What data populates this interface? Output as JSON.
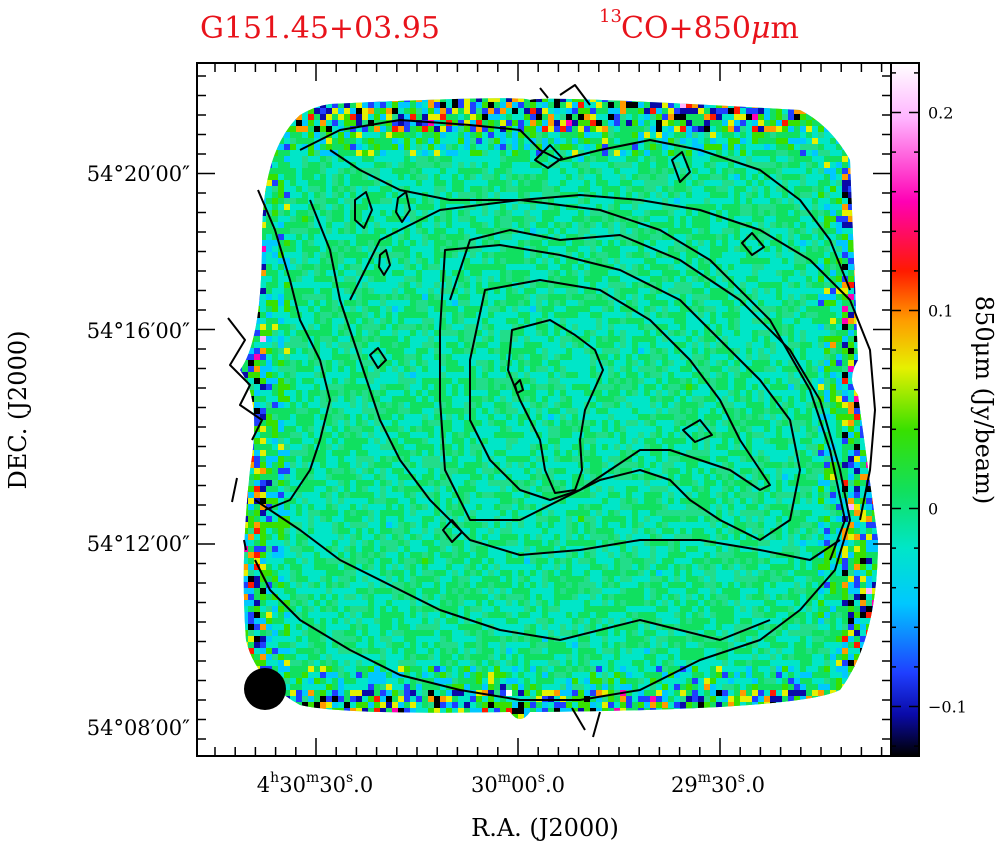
{
  "chart_data": {
    "type": "heatmap",
    "title": {
      "left": "G151.45+03.95",
      "right_superscript": "13",
      "right_main": "CO+850",
      "right_mu": "μ",
      "right_unit": "m"
    },
    "xlabel": "R.A.  (J2000)",
    "ylabel": "DEC.  (J2000)",
    "colorbar_label": "850μm  (Jy/beam)",
    "x_ticks": [
      {
        "h": "4",
        "hsup": "h",
        "m": "30",
        "msup": "m",
        "s": "30",
        "ssup": "s",
        "frac": ".0"
      },
      {
        "h": "",
        "hsup": "",
        "m": "30",
        "msup": "m",
        "s": "00",
        "ssup": "s",
        "frac": ".0"
      },
      {
        "h": "",
        "hsup": "",
        "m": "29",
        "msup": "m",
        "s": "30",
        "ssup": "s",
        "frac": ".0"
      }
    ],
    "y_ticks": [
      "54°20′00″",
      "54°16′00″",
      "54°12′00″",
      "54°08′00″"
    ],
    "colorbar_ticks": [
      "0.2",
      "0.1",
      "0",
      "−0.1"
    ],
    "colorbar_tick_values": [
      0.2,
      0.1,
      0.0,
      -0.1
    ],
    "colorbar_range": [
      -0.125,
      0.225
    ],
    "colormap": [
      "#000000",
      "#0a0aa8",
      "#1f3fff",
      "#00c8ff",
      "#00e6c8",
      "#10e060",
      "#38e000",
      "#e6f000",
      "#ff9a00",
      "#ff1a00",
      "#ff00b4",
      "#ffb4ff",
      "#ffffff"
    ],
    "map_median_value": 0.005,
    "ra_range_sec_of_time": [
      "04:30:50",
      "04:28:58"
    ],
    "dec_range": [
      "54°07′15″",
      "54°22′00″"
    ],
    "contour_color": "#000000",
    "beam": "filled circle, lower-left"
  }
}
